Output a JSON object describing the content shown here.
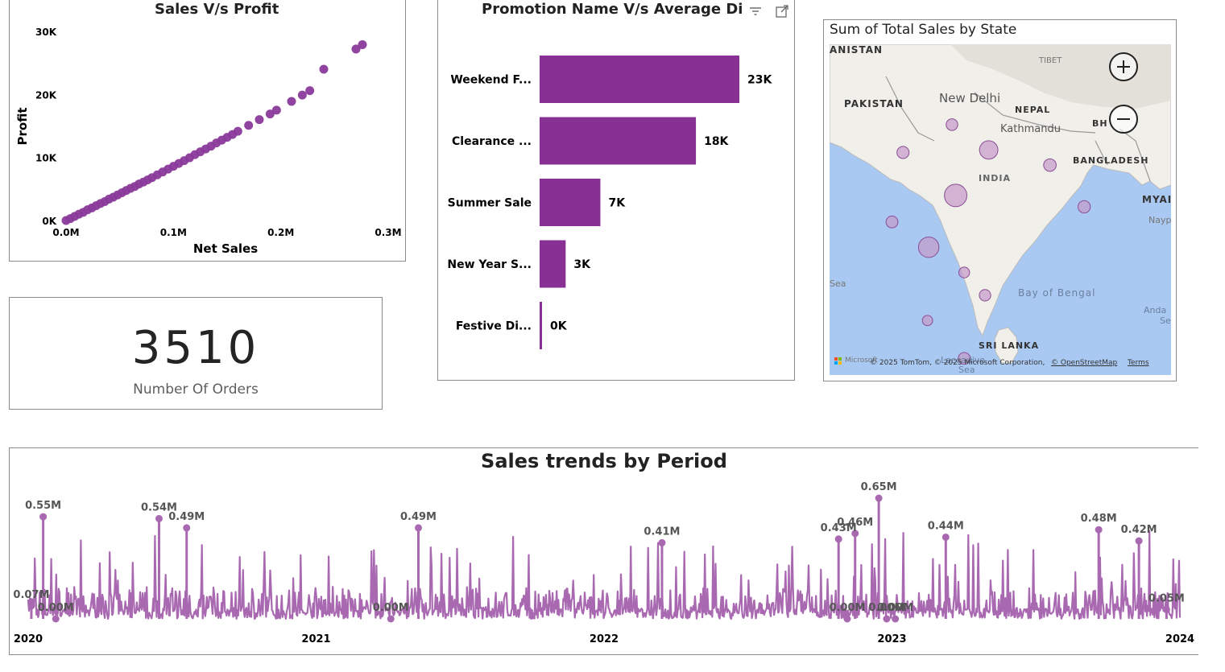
{
  "scatter": {
    "title": "Sales V/s Profit",
    "xlabel": "Net Sales",
    "ylabel": "Profit",
    "x_ticks": [
      "0.0M",
      "0.1M",
      "0.2M",
      "0.3M"
    ],
    "y_ticks": [
      "0K",
      "10K",
      "20K",
      "30K"
    ],
    "color": "#8A3A9A"
  },
  "kpi": {
    "value": "3510",
    "label": "Number Of Orders"
  },
  "bar": {
    "title": "Promotion Name V/s Average Discour",
    "color": "#883093"
  },
  "map": {
    "title": "Sum of Total Sales by State",
    "labels": {
      "afghanistan": "ANISTAN",
      "pakistan": "PAKISTAN",
      "tibet": "TIBET",
      "new_delhi": "New Delhi",
      "nepal": "NEPAL",
      "kathmandu": "Kathmandu",
      "bhutan": "BH",
      "bangladesh": "BANGLADESH",
      "india": "INDIA",
      "myanmar": "MYAI",
      "naypyidaw": "Nayp",
      "sea": "Sea",
      "bay_of_bengal": "Bay of Bengal",
      "andaman_1": "Anda",
      "andaman_2": "Se",
      "sri_lanka": "SRI LANKA",
      "laccadive_1": "Laccadive",
      "laccadive_2": "Sea",
      "microsoft": "Microsoft",
      "attribution": "© 2025 TomTom, © 2025 Microsoft Corporation,",
      "osm": "© OpenStreetMap",
      "terms": "Terms"
    },
    "bubble_color": "#C59AC9"
  },
  "trend": {
    "title": "Sales trends by Period",
    "color": "#A869B1",
    "x_ticks": [
      "2020",
      "2021",
      "2022",
      "2023",
      "2024"
    ]
  },
  "chart_data": [
    {
      "type": "scatter",
      "title": "Sales V/s Profit",
      "xlabel": "Net Sales",
      "ylabel": "Profit",
      "xlim": [
        0,
        0.3
      ],
      "ylim": [
        0,
        30000
      ],
      "x_units": "M",
      "points": [
        [
          0.0,
          0
        ],
        [
          0.004,
          300
        ],
        [
          0.008,
          650
        ],
        [
          0.012,
          1000
        ],
        [
          0.016,
          1300
        ],
        [
          0.02,
          1700
        ],
        [
          0.024,
          2000
        ],
        [
          0.028,
          2350
        ],
        [
          0.032,
          2700
        ],
        [
          0.036,
          3000
        ],
        [
          0.04,
          3400
        ],
        [
          0.044,
          3700
        ],
        [
          0.048,
          4050
        ],
        [
          0.052,
          4400
        ],
        [
          0.056,
          4750
        ],
        [
          0.06,
          5100
        ],
        [
          0.064,
          5400
        ],
        [
          0.068,
          5800
        ],
        [
          0.072,
          6100
        ],
        [
          0.076,
          6450
        ],
        [
          0.08,
          6800
        ],
        [
          0.085,
          7250
        ],
        [
          0.09,
          7700
        ],
        [
          0.095,
          8150
        ],
        [
          0.1,
          8600
        ],
        [
          0.105,
          9050
        ],
        [
          0.11,
          9500
        ],
        [
          0.115,
          9950
        ],
        [
          0.12,
          10450
        ],
        [
          0.125,
          10900
        ],
        [
          0.13,
          11350
        ],
        [
          0.135,
          11800
        ],
        [
          0.14,
          12300
        ],
        [
          0.145,
          12750
        ],
        [
          0.15,
          13200
        ],
        [
          0.155,
          13650
        ],
        [
          0.16,
          14150
        ],
        [
          0.17,
          15100
        ],
        [
          0.18,
          16000
        ],
        [
          0.19,
          16900
        ],
        [
          0.196,
          17500
        ],
        [
          0.21,
          18900
        ],
        [
          0.22,
          19900
        ],
        [
          0.227,
          20600
        ],
        [
          0.24,
          24000
        ],
        [
          0.27,
          27200
        ],
        [
          0.276,
          27900
        ]
      ]
    },
    {
      "type": "bar",
      "orientation": "horizontal",
      "title": "Promotion Name V/s Average Discour",
      "categories": [
        "Weekend F...",
        "Clearance ...",
        "Summer Sale",
        "New Year S...",
        "Festive Di..."
      ],
      "values": [
        23000,
        18000,
        7000,
        3000,
        200
      ],
      "data_labels": [
        "23K",
        "18K",
        "7K",
        "3K",
        "0K"
      ],
      "xlim": [
        0,
        24000
      ]
    },
    {
      "type": "scatter",
      "title": "Sum of Total Sales by State",
      "note": "bubble map over India",
      "bubbles": [
        {
          "lon": 77.5,
          "lat": 29.0,
          "value": 0.16
        },
        {
          "lon": 80.5,
          "lat": 27.0,
          "value": 0.46
        },
        {
          "lon": 73.5,
          "lat": 26.8,
          "value": 0.18
        },
        {
          "lon": 85.5,
          "lat": 25.8,
          "value": 0.2
        },
        {
          "lon": 77.8,
          "lat": 23.4,
          "value": 0.64
        },
        {
          "lon": 88.3,
          "lat": 22.5,
          "value": 0.19
        },
        {
          "lon": 72.6,
          "lat": 21.3,
          "value": 0.17
        },
        {
          "lon": 75.6,
          "lat": 19.3,
          "value": 0.55
        },
        {
          "lon": 78.5,
          "lat": 17.3,
          "value": 0.12
        },
        {
          "lon": 80.2,
          "lat": 15.5,
          "value": 0.15
        },
        {
          "lon": 75.5,
          "lat": 13.5,
          "value": 0.1
        },
        {
          "lon": 78.5,
          "lat": 10.5,
          "value": 0.17
        }
      ]
    },
    {
      "type": "line",
      "title": "Sales trends by Period",
      "x_ticks": [
        "2020",
        "2021",
        "2022",
        "2023",
        "2024"
      ],
      "xlim": [
        "2020-01-01",
        "2024-01-01"
      ],
      "ylim": [
        0,
        0.7
      ],
      "y_units": "M",
      "annotations": [
        {
          "date": "2020-01-20",
          "value": 0.55,
          "label": "0.55M"
        },
        {
          "date": "2020-01-05",
          "value": 0.07,
          "label": "0.07M"
        },
        {
          "date": "2020-02-05",
          "value": 0.0,
          "label": "0.00M"
        },
        {
          "date": "2020-06-15",
          "value": 0.54,
          "label": "0.54M"
        },
        {
          "date": "2020-07-20",
          "value": 0.49,
          "label": "0.49M"
        },
        {
          "date": "2021-04-05",
          "value": 0.0,
          "label": "0.00M"
        },
        {
          "date": "2021-05-10",
          "value": 0.49,
          "label": "0.49M"
        },
        {
          "date": "2022-03-15",
          "value": 0.41,
          "label": "0.41M"
        },
        {
          "date": "2022-10-25",
          "value": 0.43,
          "label": "0.43M"
        },
        {
          "date": "2022-11-15",
          "value": 0.46,
          "label": "0.46M"
        },
        {
          "date": "2022-11-05",
          "value": 0.0,
          "label": "0.00M"
        },
        {
          "date": "2022-12-15",
          "value": 0.65,
          "label": "0.65M"
        },
        {
          "date": "2023-01-05",
          "value": 0.0,
          "label": "0.00M"
        },
        {
          "date": "2022-12-25",
          "value": 0.0,
          "label": "0.00M"
        },
        {
          "date": "2023-03-10",
          "value": 0.44,
          "label": "0.44M"
        },
        {
          "date": "2023-09-20",
          "value": 0.48,
          "label": "0.48M"
        },
        {
          "date": "2023-11-10",
          "value": 0.42,
          "label": "0.42M"
        },
        {
          "date": "2023-12-15",
          "value": 0.05,
          "label": "0.05M"
        }
      ],
      "generation": {
        "points": 1400,
        "seed": 7,
        "base": 0.06,
        "spike_max": 0.33
      }
    }
  ]
}
